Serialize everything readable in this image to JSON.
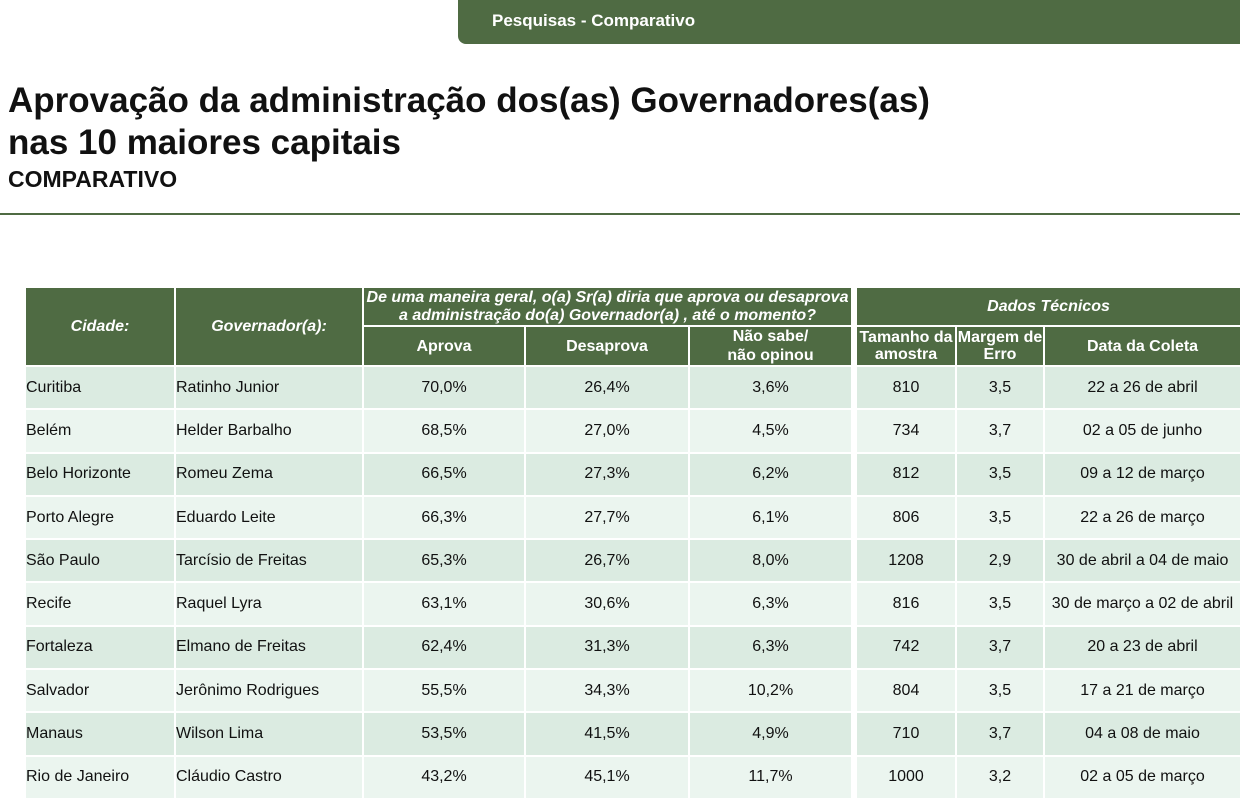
{
  "header": {
    "tab_label": "Pesquisas - Comparativo"
  },
  "page": {
    "title_line1": "Aprovação da administração dos(as) Governadores(as)",
    "title_line2": "nas 10 maiores capitais",
    "subtitle": "COMPARATIVO"
  },
  "table": {
    "headers": {
      "city": "Cidade:",
      "governor": "Governador(a):",
      "question_line1": "De uma maneira geral, o(a) Sr(a) diria que aprova ou desaprova",
      "question_line2": "a administração do(a) Governador(a)       , até o momento?",
      "technical": "Dados Técnicos",
      "approve": "Aprova",
      "disapprove": "Desaprova",
      "dont_know_line1": "Não sabe/",
      "dont_know_line2": "não opinou",
      "sample_line1": "Tamanho da",
      "sample_line2": "amostra",
      "margin_line1": "Margem de",
      "margin_line2": "Erro",
      "date": "Data da Coleta"
    },
    "rows": [
      {
        "city": "Curitiba",
        "governor": "Ratinho Junior",
        "approve": "70,0%",
        "disapprove": "26,4%",
        "dont_know": "3,6%",
        "sample": "810",
        "margin": "3,5",
        "date": "22 a 26 de abril"
      },
      {
        "city": "Belém",
        "governor": "Helder Barbalho",
        "approve": "68,5%",
        "disapprove": "27,0%",
        "dont_know": "4,5%",
        "sample": "734",
        "margin": "3,7",
        "date": "02 a 05 de junho"
      },
      {
        "city": "Belo Horizonte",
        "governor": "Romeu Zema",
        "approve": "66,5%",
        "disapprove": "27,3%",
        "dont_know": "6,2%",
        "sample": "812",
        "margin": "3,5",
        "date": "09 a 12 de março"
      },
      {
        "city": "Porto Alegre",
        "governor": "Eduardo Leite",
        "approve": "66,3%",
        "disapprove": "27,7%",
        "dont_know": "6,1%",
        "sample": "806",
        "margin": "3,5",
        "date": "22 a 26 de março"
      },
      {
        "city": "São Paulo",
        "governor": "Tarcísio de Freitas",
        "approve": "65,3%",
        "disapprove": "26,7%",
        "dont_know": "8,0%",
        "sample": "1208",
        "margin": "2,9",
        "date": "30 de abril a 04 de maio"
      },
      {
        "city": "Recife",
        "governor": "Raquel Lyra",
        "approve": "63,1%",
        "disapprove": "30,6%",
        "dont_know": "6,3%",
        "sample": "816",
        "margin": "3,5",
        "date": "30 de março a 02 de abril"
      },
      {
        "city": "Fortaleza",
        "governor": "Elmano de Freitas",
        "approve": "62,4%",
        "disapprove": "31,3%",
        "dont_know": "6,3%",
        "sample": "742",
        "margin": "3,7",
        "date": "20 a 23 de abril"
      },
      {
        "city": "Salvador",
        "governor": "Jerônimo Rodrigues",
        "approve": "55,5%",
        "disapprove": "34,3%",
        "dont_know": "10,2%",
        "sample": "804",
        "margin": "3,5",
        "date": "17 a 21 de março"
      },
      {
        "city": "Manaus",
        "governor": "Wilson Lima",
        "approve": "53,5%",
        "disapprove": "41,5%",
        "dont_know": "4,9%",
        "sample": "710",
        "margin": "3,7",
        "date": "04 a 08 de maio"
      },
      {
        "city": "Rio de Janeiro",
        "governor": "Cláudio Castro",
        "approve": "43,2%",
        "disapprove": "45,1%",
        "dont_know": "11,7%",
        "sample": "1000",
        "margin": "3,2",
        "date": "02 a 05 de março"
      }
    ]
  },
  "colors": {
    "header_green": "#4f6b43",
    "row_light": "#dbebe1",
    "row_lighter": "#ebf5ef"
  }
}
